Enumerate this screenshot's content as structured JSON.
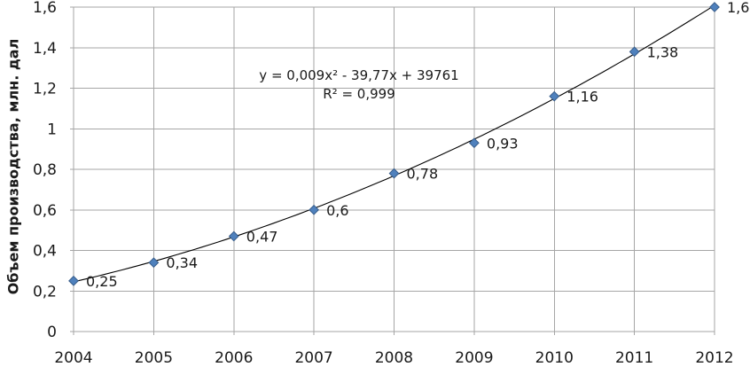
{
  "chart_data": {
    "type": "scatter",
    "title": "",
    "x": [
      2004,
      2005,
      2006,
      2007,
      2008,
      2009,
      2010,
      2011,
      2012
    ],
    "series": [
      {
        "name": "Объем производства",
        "values": [
          0.25,
          0.34,
          0.47,
          0.6,
          0.78,
          0.93,
          1.16,
          1.38,
          1.6
        ]
      }
    ],
    "point_labels": [
      "0,25",
      "0,34",
      "0,47",
      "0,6",
      "0,78",
      "0,93",
      "1,16",
      "1,38",
      "1,6"
    ],
    "xtick_labels": [
      "2004",
      "2005",
      "2006",
      "2007",
      "2008",
      "2009",
      "2010",
      "2011",
      "2012"
    ],
    "yticks": [
      0,
      0.2,
      0.4,
      0.6,
      0.8,
      1,
      1.2,
      1.4,
      1.6
    ],
    "ytick_labels": [
      "0",
      "0,2",
      "0,4",
      "0,6",
      "0,8",
      "1",
      "1,2",
      "1,4",
      "1,6"
    ],
    "ylim": [
      0,
      1.6
    ],
    "xlabel": "",
    "ylabel": "Объем производства, млн. дал",
    "grid": true,
    "legend": "none",
    "trendline": {
      "type": "polynomial",
      "equation": "y = 0,009x² - 39,77x + 39761",
      "r2": "R² = 0,999",
      "fit_coeffs_t": [
        0.2452,
        0.091,
        0.00993
      ]
    },
    "colors": {
      "marker_fill": "#4F81BD",
      "marker_border": "#385D8A",
      "trend_line": "#000000",
      "gridline": "#A6A6A6",
      "text": "#1A1A1A"
    }
  }
}
